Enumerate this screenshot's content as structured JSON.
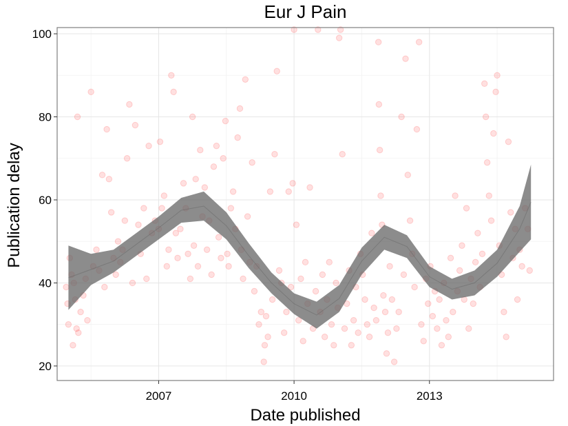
{
  "chart_data": {
    "type": "scatter",
    "title": "Eur J Pain",
    "xlabel": "Date published",
    "ylabel": "Publication delay",
    "x_unit": "year",
    "xlim": [
      2004.75,
      2015.75
    ],
    "ylim": [
      16.5,
      101.5
    ],
    "x_ticks": [
      {
        "value": 2007,
        "label": "2007"
      },
      {
        "value": 2010,
        "label": "2010"
      },
      {
        "value": 2013,
        "label": "2013"
      }
    ],
    "y_ticks": [
      {
        "value": 20,
        "label": "20"
      },
      {
        "value": 40,
        "label": "40"
      },
      {
        "value": 60,
        "label": "60"
      },
      {
        "value": 80,
        "label": "80"
      },
      {
        "value": 100,
        "label": "100"
      }
    ],
    "x_minor_ticks": [
      2005.5,
      2008.5,
      2011.5,
      2014.5
    ],
    "y_minor_ticks": [
      30,
      50,
      70,
      90
    ],
    "grid": true,
    "legend": "none",
    "colors": {
      "points": "#ff0000",
      "band": "#666666",
      "panel_border": "#7f7f7f"
    },
    "smooth": {
      "x": [
        2005.0,
        2005.5,
        2006.0,
        2006.5,
        2007.0,
        2007.5,
        2008.0,
        2008.5,
        2009.0,
        2009.5,
        2010.0,
        2010.5,
        2011.0,
        2011.5,
        2012.0,
        2012.5,
        2013.0,
        2013.5,
        2014.0,
        2014.5,
        2015.0,
        2015.25
      ],
      "lower": [
        33.5,
        39.5,
        42.5,
        46.5,
        50.5,
        54.5,
        55.0,
        50.5,
        43.5,
        37.5,
        32.5,
        29.0,
        33.0,
        42.0,
        48.0,
        46.0,
        39.0,
        36.0,
        37.0,
        41.5,
        47.5,
        50.5
      ],
      "upper": [
        49.0,
        47.0,
        48.0,
        52.0,
        56.0,
        60.5,
        62.0,
        57.0,
        49.5,
        42.5,
        37.5,
        35.5,
        39.5,
        48.5,
        54.0,
        51.5,
        44.0,
        41.0,
        43.0,
        48.0,
        58.5,
        68.5
      ]
    },
    "points": [
      [
        2004.95,
        39
      ],
      [
        2004.98,
        35
      ],
      [
        2005.0,
        30
      ],
      [
        2005.03,
        46
      ],
      [
        2005.07,
        42
      ],
      [
        2005.1,
        25
      ],
      [
        2005.12,
        40
      ],
      [
        2005.15,
        36
      ],
      [
        2005.18,
        29
      ],
      [
        2005.2,
        80
      ],
      [
        2005.22,
        28
      ],
      [
        2005.27,
        33
      ],
      [
        2005.33,
        37
      ],
      [
        2005.38,
        41
      ],
      [
        2005.42,
        31
      ],
      [
        2005.5,
        86
      ],
      [
        2005.55,
        44
      ],
      [
        2005.62,
        48
      ],
      [
        2005.68,
        43
      ],
      [
        2005.75,
        66
      ],
      [
        2005.8,
        39
      ],
      [
        2005.85,
        77
      ],
      [
        2005.9,
        65
      ],
      [
        2005.95,
        57
      ],
      [
        2006.0,
        46
      ],
      [
        2006.05,
        42
      ],
      [
        2006.1,
        50
      ],
      [
        2006.15,
        45
      ],
      [
        2006.2,
        48
      ],
      [
        2006.25,
        55
      ],
      [
        2006.3,
        70
      ],
      [
        2006.35,
        83
      ],
      [
        2006.42,
        40
      ],
      [
        2006.48,
        78
      ],
      [
        2006.55,
        54
      ],
      [
        2006.6,
        47
      ],
      [
        2006.67,
        58
      ],
      [
        2006.73,
        41
      ],
      [
        2006.78,
        73
      ],
      [
        2006.85,
        52
      ],
      [
        2006.92,
        55
      ],
      [
        2007.0,
        53
      ],
      [
        2007.03,
        74
      ],
      [
        2007.07,
        58
      ],
      [
        2007.12,
        61
      ],
      [
        2007.18,
        44
      ],
      [
        2007.22,
        48
      ],
      [
        2007.28,
        90
      ],
      [
        2007.33,
        86
      ],
      [
        2007.38,
        52
      ],
      [
        2007.42,
        46
      ],
      [
        2007.48,
        53
      ],
      [
        2007.55,
        64
      ],
      [
        2007.6,
        58
      ],
      [
        2007.65,
        47
      ],
      [
        2007.7,
        41
      ],
      [
        2007.75,
        80
      ],
      [
        2007.78,
        49
      ],
      [
        2007.82,
        65
      ],
      [
        2007.87,
        44
      ],
      [
        2007.92,
        72
      ],
      [
        2007.97,
        56
      ],
      [
        2008.02,
        63
      ],
      [
        2008.07,
        48
      ],
      [
        2008.12,
        55
      ],
      [
        2008.17,
        42
      ],
      [
        2008.22,
        68
      ],
      [
        2008.28,
        73
      ],
      [
        2008.33,
        51
      ],
      [
        2008.38,
        46
      ],
      [
        2008.43,
        70
      ],
      [
        2008.48,
        79
      ],
      [
        2008.52,
        47
      ],
      [
        2008.55,
        44
      ],
      [
        2008.6,
        58
      ],
      [
        2008.65,
        62
      ],
      [
        2008.7,
        53
      ],
      [
        2008.75,
        75
      ],
      [
        2008.8,
        82
      ],
      [
        2008.83,
        48
      ],
      [
        2008.87,
        41
      ],
      [
        2008.92,
        89
      ],
      [
        2008.97,
        56
      ],
      [
        2009.02,
        45
      ],
      [
        2009.07,
        69
      ],
      [
        2009.12,
        38
      ],
      [
        2009.17,
        44
      ],
      [
        2009.22,
        30
      ],
      [
        2009.27,
        33
      ],
      [
        2009.33,
        21
      ],
      [
        2009.35,
        25
      ],
      [
        2009.38,
        32
      ],
      [
        2009.42,
        27
      ],
      [
        2009.47,
        62
      ],
      [
        2009.52,
        36
      ],
      [
        2009.57,
        71
      ],
      [
        2009.62,
        91
      ],
      [
        2009.67,
        43
      ],
      [
        2009.72,
        40
      ],
      [
        2009.78,
        28
      ],
      [
        2009.83,
        33
      ],
      [
        2009.88,
        62
      ],
      [
        2009.93,
        39
      ],
      [
        2009.97,
        64
      ],
      [
        2010.0,
        101
      ],
      [
        2010.05,
        54
      ],
      [
        2010.1,
        31
      ],
      [
        2010.15,
        41
      ],
      [
        2010.2,
        26
      ],
      [
        2010.25,
        45
      ],
      [
        2010.3,
        35
      ],
      [
        2010.35,
        63
      ],
      [
        2010.42,
        29
      ],
      [
        2010.48,
        38
      ],
      [
        2010.53,
        101
      ],
      [
        2010.58,
        33
      ],
      [
        2010.63,
        42
      ],
      [
        2010.68,
        27
      ],
      [
        2010.73,
        36
      ],
      [
        2010.78,
        45
      ],
      [
        2010.83,
        30
      ],
      [
        2010.88,
        25
      ],
      [
        2010.93,
        40
      ],
      [
        2010.97,
        34
      ],
      [
        2011.0,
        99
      ],
      [
        2011.03,
        101
      ],
      [
        2011.07,
        71
      ],
      [
        2011.12,
        29
      ],
      [
        2011.17,
        35
      ],
      [
        2011.22,
        43
      ],
      [
        2011.27,
        25
      ],
      [
        2011.32,
        31
      ],
      [
        2011.37,
        39
      ],
      [
        2011.42,
        28
      ],
      [
        2011.47,
        47
      ],
      [
        2011.52,
        42
      ],
      [
        2011.57,
        36
      ],
      [
        2011.62,
        30
      ],
      [
        2011.67,
        27
      ],
      [
        2011.72,
        52
      ],
      [
        2011.77,
        34
      ],
      [
        2011.82,
        31
      ],
      [
        2011.87,
        98
      ],
      [
        2011.88,
        83
      ],
      [
        2011.9,
        72
      ],
      [
        2011.92,
        61
      ],
      [
        2011.95,
        54
      ],
      [
        2011.98,
        37
      ],
      [
        2012.02,
        33
      ],
      [
        2012.05,
        23
      ],
      [
        2012.08,
        28
      ],
      [
        2012.12,
        44
      ],
      [
        2012.17,
        36
      ],
      [
        2012.22,
        21
      ],
      [
        2012.27,
        29
      ],
      [
        2012.32,
        33
      ],
      [
        2012.38,
        80
      ],
      [
        2012.43,
        42
      ],
      [
        2012.47,
        94
      ],
      [
        2012.52,
        66
      ],
      [
        2012.57,
        55
      ],
      [
        2012.62,
        47
      ],
      [
        2012.67,
        39
      ],
      [
        2012.72,
        77
      ],
      [
        2012.77,
        98
      ],
      [
        2012.82,
        30
      ],
      [
        2012.87,
        26
      ],
      [
        2012.92,
        41
      ],
      [
        2012.97,
        35
      ],
      [
        2013.02,
        44
      ],
      [
        2013.07,
        32
      ],
      [
        2013.12,
        38
      ],
      [
        2013.17,
        29
      ],
      [
        2013.22,
        36
      ],
      [
        2013.27,
        25
      ],
      [
        2013.32,
        40
      ],
      [
        2013.37,
        31
      ],
      [
        2013.42,
        27
      ],
      [
        2013.47,
        46
      ],
      [
        2013.52,
        33
      ],
      [
        2013.57,
        61
      ],
      [
        2013.62,
        38
      ],
      [
        2013.67,
        43
      ],
      [
        2013.72,
        49
      ],
      [
        2013.77,
        36
      ],
      [
        2013.82,
        58
      ],
      [
        2013.87,
        29
      ],
      [
        2013.92,
        41
      ],
      [
        2013.97,
        35
      ],
      [
        2014.02,
        45
      ],
      [
        2014.07,
        52
      ],
      [
        2014.12,
        39
      ],
      [
        2014.17,
        47
      ],
      [
        2014.22,
        88
      ],
      [
        2014.25,
        80
      ],
      [
        2014.28,
        69
      ],
      [
        2014.32,
        61
      ],
      [
        2014.37,
        55
      ],
      [
        2014.42,
        76
      ],
      [
        2014.47,
        86
      ],
      [
        2014.5,
        90
      ],
      [
        2014.55,
        49
      ],
      [
        2014.6,
        42
      ],
      [
        2014.65,
        33
      ],
      [
        2014.7,
        27
      ],
      [
        2014.75,
        74
      ],
      [
        2014.8,
        57
      ],
      [
        2014.85,
        46
      ],
      [
        2014.9,
        53
      ],
      [
        2014.95,
        36
      ],
      [
        2015.0,
        48
      ],
      [
        2015.05,
        44
      ],
      [
        2015.12,
        58
      ],
      [
        2015.18,
        53
      ],
      [
        2015.22,
        43
      ]
    ]
  }
}
